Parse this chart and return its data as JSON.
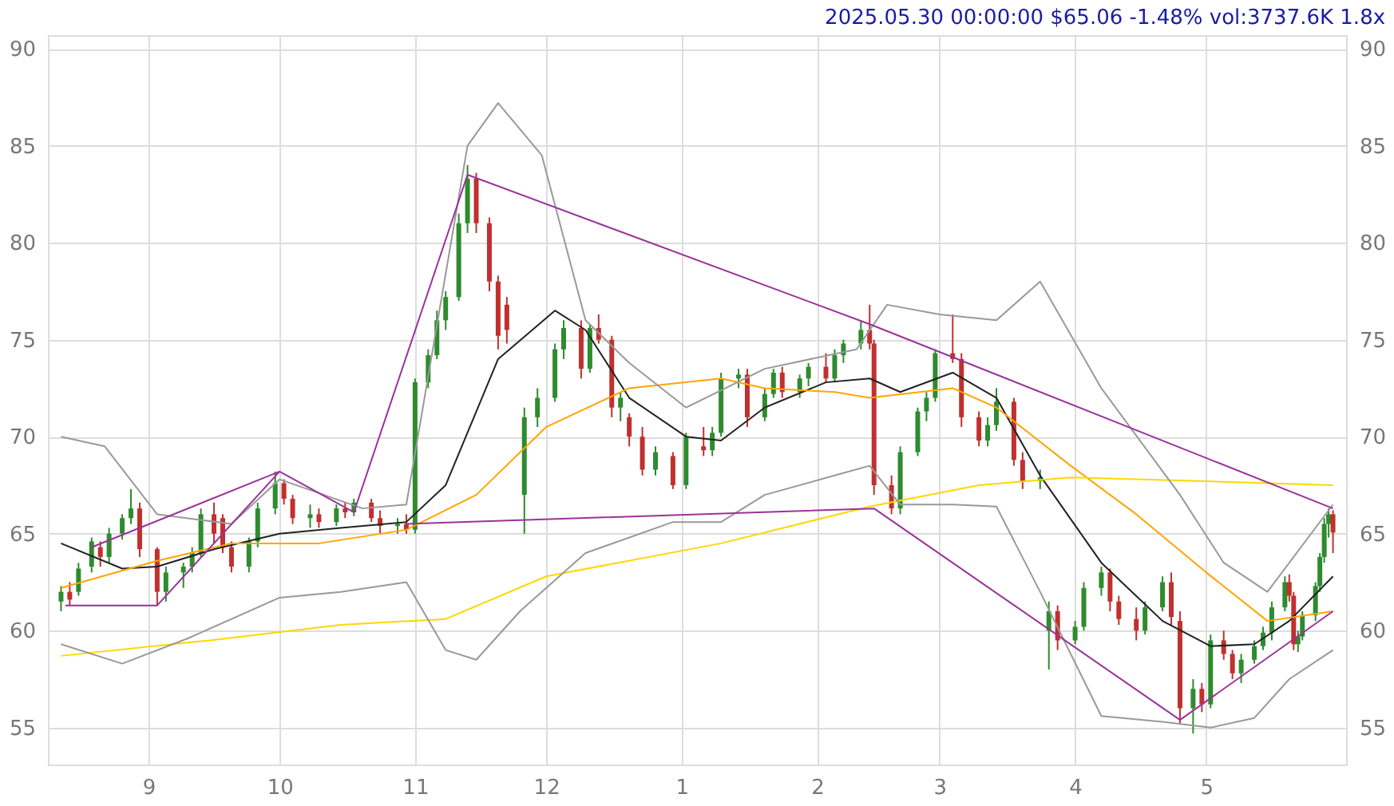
{
  "chart_data": {
    "type": "candlestick",
    "title": "2025.05.30 00:00:00 $65.06 -1.48% vol:3737.6K 1.8x",
    "xlim": [
      "2024-08-09",
      "2025-06-02"
    ],
    "xticks": [
      {
        "value": "2024-09-01",
        "label": "9"
      },
      {
        "value": "2024-10-01",
        "label": "10"
      },
      {
        "value": "2024-11-01",
        "label": "11"
      },
      {
        "value": "2024-12-01",
        "label": "12"
      },
      {
        "value": "2025-01-01",
        "label": "1"
      },
      {
        "value": "2025-02-01",
        "label": "2"
      },
      {
        "value": "2025-03-01",
        "label": "3"
      },
      {
        "value": "2025-04-01",
        "label": "4"
      },
      {
        "value": "2025-05-01",
        "label": "5"
      }
    ],
    "ylim": [
      53.1,
      90.7
    ],
    "yticks": [
      55,
      60,
      65,
      70,
      75,
      80,
      85,
      90
    ],
    "y2lim": [
      53.1,
      90.7
    ],
    "y2ticks": [
      55,
      60,
      65,
      70,
      75,
      80,
      85,
      90
    ],
    "grid": true,
    "series": [
      {
        "color": "#2e8b2e",
        "x": [
          "2024-08-12",
          "2024-08-16",
          "2024-08-19",
          "2024-08-23",
          "2024-08-26",
          "2024-08-28",
          "2024-09-05",
          "2024-09-09",
          "2024-09-11",
          "2024-09-13",
          "2024-09-24",
          "2024-09-26",
          "2024-09-30",
          "2024-10-08",
          "2024-10-14",
          "2024-10-18",
          "2024-10-28",
          "2024-11-01",
          "2024-11-04",
          "2024-11-06",
          "2024-11-08",
          "2024-11-11",
          "2024-11-13",
          "2024-11-26",
          "2024-11-29",
          "2024-12-03",
          "2024-12-05",
          "2024-12-11",
          "2024-12-18",
          "2024-12-26",
          "2025-01-02",
          "2025-01-08",
          "2025-01-10",
          "2025-01-14",
          "2025-01-20",
          "2025-01-22",
          "2025-01-28",
          "2025-01-30",
          "2025-02-05",
          "2025-02-07",
          "2025-02-11",
          "2025-02-20",
          "2025-02-24",
          "2025-02-26",
          "2025-02-28",
          "2025-03-12",
          "2025-03-14",
          "2025-03-24",
          "2025-03-26",
          "2025-04-01",
          "2025-04-03",
          "2025-04-07",
          "2025-04-17",
          "2025-04-21",
          "2025-04-28",
          "2025-05-02",
          "2025-05-09",
          "2025-05-12",
          "2025-05-14",
          "2025-05-16",
          "2025-05-19",
          "2025-05-22",
          "2025-05-23",
          "2025-05-26",
          "2025-05-27",
          "2025-05-28",
          "2025-05-29"
        ],
        "ohlc": [
          [
            61.5,
            62.3,
            61.0,
            62.0
          ],
          [
            62.0,
            63.5,
            61.8,
            63.2
          ],
          [
            63.3,
            64.8,
            63.0,
            64.6
          ],
          [
            63.8,
            65.3,
            63.5,
            65.0
          ],
          [
            65.0,
            66.0,
            64.7,
            65.8
          ],
          [
            65.8,
            67.3,
            65.5,
            66.3
          ],
          [
            62.0,
            63.3,
            61.5,
            63.0
          ],
          [
            63.0,
            63.5,
            62.2,
            63.3
          ],
          [
            63.3,
            64.3,
            63.0,
            64.0
          ],
          [
            64.0,
            66.3,
            63.8,
            66.0
          ],
          [
            63.3,
            64.8,
            63.0,
            64.6
          ],
          [
            64.6,
            66.6,
            64.3,
            66.3
          ],
          [
            66.3,
            68.2,
            66.0,
            67.6
          ],
          [
            65.8,
            66.5,
            65.3,
            66.0
          ],
          [
            65.6,
            66.5,
            65.4,
            66.3
          ],
          [
            66.1,
            66.8,
            65.9,
            66.6
          ],
          [
            65.4,
            65.8,
            65.0,
            65.5
          ],
          [
            65.2,
            73.0,
            65.0,
            72.8
          ],
          [
            72.8,
            74.5,
            72.5,
            74.2
          ],
          [
            74.2,
            76.5,
            74.0,
            76.0
          ],
          [
            76.0,
            77.5,
            75.5,
            77.2
          ],
          [
            77.2,
            81.5,
            77.0,
            81.0
          ],
          [
            81.0,
            84.0,
            80.5,
            83.3
          ],
          [
            67.0,
            71.5,
            65.0,
            71.0
          ],
          [
            71.0,
            72.5,
            70.5,
            72.0
          ],
          [
            72.0,
            74.8,
            71.8,
            74.5
          ],
          [
            74.5,
            76.0,
            74.0,
            75.6
          ],
          [
            73.5,
            75.8,
            73.3,
            75.6
          ],
          [
            71.5,
            72.3,
            70.8,
            72.0
          ],
          [
            68.3,
            69.5,
            68.0,
            69.2
          ],
          [
            67.5,
            70.2,
            67.3,
            70.0
          ],
          [
            69.3,
            70.5,
            69.0,
            70.2
          ],
          [
            70.2,
            73.3,
            70.0,
            73.0
          ],
          [
            73.0,
            73.5,
            72.5,
            73.2
          ],
          [
            71.0,
            72.5,
            70.8,
            72.2
          ],
          [
            72.2,
            73.5,
            72.0,
            73.3
          ],
          [
            72.3,
            73.2,
            72.0,
            73.0
          ],
          [
            73.0,
            73.8,
            72.6,
            73.6
          ],
          [
            73.0,
            74.5,
            72.8,
            74.2
          ],
          [
            74.2,
            75.0,
            73.8,
            74.8
          ],
          [
            74.8,
            76.0,
            74.5,
            75.5
          ],
          [
            66.3,
            69.5,
            66.0,
            69.2
          ],
          [
            69.2,
            71.5,
            69.0,
            71.3
          ],
          [
            71.3,
            72.3,
            70.8,
            72.0
          ],
          [
            72.0,
            74.5,
            71.8,
            74.3
          ],
          [
            69.8,
            71.0,
            69.5,
            70.6
          ],
          [
            70.6,
            72.5,
            70.3,
            71.8
          ],
          [
            67.7,
            68.3,
            67.3,
            67.9
          ],
          [
            60.0,
            61.5,
            58.0,
            61.0
          ],
          [
            59.5,
            60.5,
            59.3,
            60.2
          ],
          [
            60.2,
            62.5,
            60.0,
            62.2
          ],
          [
            62.2,
            63.3,
            61.8,
            63.0
          ],
          [
            60.0,
            61.5,
            59.8,
            61.2
          ],
          [
            61.2,
            62.8,
            61.0,
            62.5
          ],
          [
            56.0,
            57.5,
            54.7,
            57.0
          ],
          [
            56.2,
            59.8,
            56.0,
            59.5
          ],
          [
            57.8,
            58.8,
            57.3,
            58.5
          ],
          [
            58.5,
            59.5,
            58.3,
            59.2
          ],
          [
            59.2,
            60.2,
            59.0,
            59.9
          ],
          [
            59.9,
            61.5,
            59.5,
            61.2
          ],
          [
            61.2,
            62.8,
            61.0,
            62.5
          ],
          [
            59.3,
            60.0,
            58.9,
            59.7
          ],
          [
            59.7,
            61.0,
            59.5,
            60.8
          ],
          [
            60.8,
            62.5,
            60.5,
            62.3
          ],
          [
            62.3,
            64.0,
            62.0,
            63.8
          ],
          [
            63.8,
            65.8,
            63.5,
            65.5
          ],
          [
            65.5,
            66.3,
            64.8,
            66.0
          ]
        ]
      },
      {
        "color": "#c0302f",
        "x": [
          "2024-08-14",
          "2024-08-21",
          "2024-08-30",
          "2024-09-03",
          "2024-09-16",
          "2024-09-18",
          "2024-09-20",
          "2024-10-02",
          "2024-10-04",
          "2024-10-10",
          "2024-10-16",
          "2024-10-22",
          "2024-10-24",
          "2024-10-30",
          "2024-11-15",
          "2024-11-18",
          "2024-11-20",
          "2024-11-22",
          "2024-12-09",
          "2024-12-13",
          "2024-12-16",
          "2024-12-20",
          "2024-12-23",
          "2024-12-30",
          "2025-01-06",
          "2025-01-16",
          "2025-01-24",
          "2025-02-03",
          "2025-02-13",
          "2025-02-14",
          "2025-02-18",
          "2025-03-04",
          "2025-03-06",
          "2025-03-10",
          "2025-03-18",
          "2025-03-20",
          "2025-03-28",
          "2025-04-09",
          "2025-04-11",
          "2025-04-15",
          "2025-04-23",
          "2025-04-25",
          "2025-04-30",
          "2025-05-05",
          "2025-05-07",
          "2025-05-20",
          "2025-05-21",
          "2025-05-30"
        ],
        "ohlc": [
          [
            62.0,
            62.5,
            61.3,
            61.6
          ],
          [
            64.3,
            64.6,
            63.3,
            63.8
          ],
          [
            66.3,
            66.6,
            63.8,
            64.2
          ],
          [
            64.2,
            64.3,
            61.3,
            62.0
          ],
          [
            66.0,
            66.6,
            64.5,
            65.0
          ],
          [
            65.8,
            66.0,
            64.0,
            64.3
          ],
          [
            64.3,
            64.6,
            63.0,
            63.3
          ],
          [
            67.6,
            67.8,
            66.5,
            66.8
          ],
          [
            66.8,
            67.0,
            65.5,
            65.8
          ],
          [
            66.0,
            66.3,
            65.3,
            65.6
          ],
          [
            66.3,
            66.6,
            65.8,
            66.1
          ],
          [
            66.6,
            66.8,
            65.6,
            65.8
          ],
          [
            65.8,
            66.2,
            65.0,
            65.4
          ],
          [
            65.5,
            66.0,
            65.0,
            65.2
          ],
          [
            83.3,
            83.6,
            80.5,
            81.0
          ],
          [
            81.0,
            81.3,
            77.5,
            78.0
          ],
          [
            78.0,
            78.3,
            74.5,
            75.2
          ],
          [
            76.8,
            77.2,
            74.8,
            75.5
          ],
          [
            75.6,
            76.0,
            73.0,
            73.5
          ],
          [
            75.6,
            76.3,
            74.8,
            75.0
          ],
          [
            75.0,
            75.2,
            71.0,
            71.5
          ],
          [
            71.0,
            71.2,
            69.5,
            70.0
          ],
          [
            70.0,
            70.5,
            68.0,
            68.3
          ],
          [
            69.0,
            69.2,
            67.3,
            67.5
          ],
          [
            69.5,
            70.5,
            69.0,
            69.3
          ],
          [
            73.2,
            73.5,
            70.5,
            71.0
          ],
          [
            73.3,
            73.6,
            72.0,
            72.3
          ],
          [
            73.6,
            74.3,
            72.8,
            73.0
          ],
          [
            75.5,
            76.8,
            74.5,
            74.8
          ],
          [
            74.8,
            75.0,
            67.0,
            67.5
          ],
          [
            67.5,
            68.0,
            66.0,
            66.3
          ],
          [
            74.3,
            76.3,
            73.8,
            74.0
          ],
          [
            74.0,
            74.3,
            70.5,
            71.0
          ],
          [
            71.0,
            71.3,
            69.5,
            69.8
          ],
          [
            71.8,
            72.0,
            68.5,
            68.8
          ],
          [
            68.8,
            69.2,
            67.3,
            67.7
          ],
          [
            61.0,
            61.3,
            59.0,
            59.5
          ],
          [
            63.0,
            63.2,
            61.0,
            61.5
          ],
          [
            61.5,
            61.8,
            60.3,
            60.6
          ],
          [
            60.6,
            61.2,
            59.5,
            60.0
          ],
          [
            62.5,
            63.0,
            60.3,
            60.7
          ],
          [
            60.5,
            61.0,
            55.2,
            56.0
          ],
          [
            57.0,
            57.3,
            55.8,
            56.2
          ],
          [
            59.5,
            60.0,
            58.5,
            58.8
          ],
          [
            58.8,
            59.0,
            57.5,
            57.8
          ],
          [
            62.5,
            62.9,
            61.5,
            61.8
          ],
          [
            61.8,
            62.0,
            59.0,
            59.3
          ],
          [
            66.0,
            66.2,
            64.0,
            65.06
          ]
        ]
      },
      {
        "type": "line",
        "color": "#222222",
        "x": [
          "2024-08-12",
          "2024-08-26",
          "2024-09-03",
          "2024-09-16",
          "2024-10-01",
          "2024-10-15",
          "2024-10-30",
          "2024-11-08",
          "2024-11-20",
          "2024-12-03",
          "2024-12-10",
          "2024-12-20",
          "2025-01-02",
          "2025-01-10",
          "2025-01-20",
          "2025-02-03",
          "2025-02-13",
          "2025-02-20",
          "2025-03-04",
          "2025-03-14",
          "2025-03-24",
          "2025-04-07",
          "2025-04-21",
          "2025-05-02",
          "2025-05-12",
          "2025-05-20",
          "2025-05-30"
        ],
        "values": [
          64.5,
          63.2,
          63.3,
          64.2,
          65.0,
          65.3,
          65.6,
          67.5,
          74.0,
          76.5,
          75.5,
          72.0,
          70.0,
          69.8,
          71.5,
          72.8,
          73.0,
          72.3,
          73.3,
          72.0,
          68.0,
          63.5,
          60.5,
          59.2,
          59.3,
          60.5,
          62.8
        ]
      },
      {
        "type": "line",
        "color": "#ffa500",
        "x": [
          "2024-08-12",
          "2024-09-03",
          "2024-09-20",
          "2024-10-10",
          "2024-10-30",
          "2024-11-15",
          "2024-12-01",
          "2024-12-20",
          "2025-01-10",
          "2025-01-20",
          "2025-02-05",
          "2025-02-13",
          "2025-03-04",
          "2025-03-14",
          "2025-03-31",
          "2025-04-15",
          "2025-05-01",
          "2025-05-15",
          "2025-05-30"
        ],
        "values": [
          62.2,
          63.6,
          64.5,
          64.5,
          65.2,
          67.0,
          70.5,
          72.5,
          73.0,
          72.5,
          72.3,
          72.0,
          72.5,
          71.5,
          68.5,
          66.0,
          63.0,
          60.5,
          61.0
        ]
      },
      {
        "type": "line",
        "color": "#ffd700",
        "x": [
          "2024-08-12",
          "2024-09-15",
          "2024-10-15",
          "2024-11-08",
          "2024-12-01",
          "2025-01-10",
          "2025-02-13",
          "2025-03-10",
          "2025-03-31",
          "2025-05-01",
          "2025-05-30"
        ],
        "values": [
          58.7,
          59.5,
          60.3,
          60.6,
          62.8,
          64.5,
          66.4,
          67.5,
          67.9,
          67.7,
          67.5
        ]
      },
      {
        "type": "line",
        "color": "#999999",
        "x": [
          "2024-08-12",
          "2024-08-22",
          "2024-09-03",
          "2024-09-20",
          "2024-10-01",
          "2024-10-20",
          "2024-10-30",
          "2024-11-13",
          "2024-11-20",
          "2024-11-30",
          "2024-12-10",
          "2024-12-20",
          "2025-01-02",
          "2025-01-20",
          "2025-02-10",
          "2025-02-17",
          "2025-03-01",
          "2025-03-14",
          "2025-03-24",
          "2025-04-07",
          "2025-04-25",
          "2025-05-05",
          "2025-05-15",
          "2025-05-30"
        ],
        "values": [
          70.0,
          69.5,
          66.0,
          65.5,
          67.8,
          66.3,
          66.5,
          85.0,
          87.2,
          84.5,
          76.0,
          73.8,
          71.5,
          73.5,
          74.5,
          76.8,
          76.3,
          76.0,
          78.0,
          72.5,
          67.0,
          63.5,
          62.0,
          66.5
        ]
      },
      {
        "type": "line",
        "color": "#999999",
        "x": [
          "2024-08-12",
          "2024-08-26",
          "2024-09-10",
          "2024-10-01",
          "2024-10-15",
          "2024-10-30",
          "2024-11-08",
          "2024-11-15",
          "2024-11-25",
          "2024-12-10",
          "2024-12-30",
          "2025-01-10",
          "2025-01-20",
          "2025-02-05",
          "2025-02-13",
          "2025-02-20",
          "2025-03-04",
          "2025-03-14",
          "2025-03-24",
          "2025-04-07",
          "2025-04-21",
          "2025-05-02",
          "2025-05-12",
          "2025-05-20",
          "2025-05-30"
        ],
        "values": [
          59.3,
          58.3,
          59.6,
          61.7,
          62.0,
          62.5,
          59.0,
          58.5,
          61.0,
          64.0,
          65.6,
          65.6,
          67.0,
          68.0,
          68.5,
          66.5,
          66.5,
          66.4,
          62.0,
          55.6,
          55.3,
          55.0,
          55.5,
          57.5,
          59.0
        ]
      },
      {
        "type": "line",
        "color": "#993399",
        "x": [
          "2024-08-13",
          "2024-09-03",
          "2024-10-01",
          "2024-10-18",
          "2024-11-13",
          "2025-02-13",
          "2025-05-30"
        ],
        "values": [
          61.3,
          61.3,
          68.2,
          66.1,
          83.5,
          75.8,
          66.3
        ]
      },
      {
        "type": "line",
        "color": "#993399",
        "x": [
          "2024-08-19",
          "2024-10-01"
        ],
        "values": [
          64.3,
          68.2
        ]
      },
      {
        "type": "line",
        "color": "#993399",
        "x": [
          "2024-10-30",
          "2025-02-14",
          "2025-04-25",
          "2025-05-30"
        ],
        "values": [
          65.5,
          66.3,
          55.4,
          61.0
        ]
      }
    ]
  }
}
